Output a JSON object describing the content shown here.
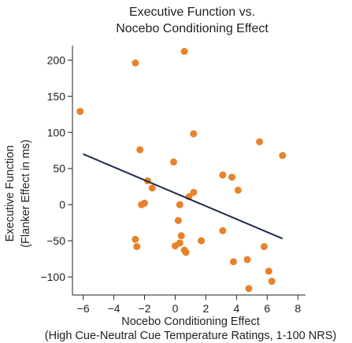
{
  "chart_data": {
    "type": "scatter",
    "title": [
      "Executive Function vs.",
      "Nocebo Conditioning Effect"
    ],
    "xlabel": [
      "Nocebo Conditioning Effect",
      "(High Cue-Neutral Cue Temperature Ratings, 1-100 NRS)"
    ],
    "ylabel": [
      "Executive Function",
      "(Flanker Effect in ms)"
    ],
    "xlim": [
      -6.7,
      8.5
    ],
    "ylim": [
      -125,
      220
    ],
    "x_ticks": [
      -6,
      -4,
      -2,
      0,
      2,
      4,
      6,
      8
    ],
    "y_ticks": [
      200,
      150,
      100,
      50,
      0,
      -50,
      -100
    ],
    "grid": false,
    "point_color": "#E8822A",
    "line_color": "#1B2A4A",
    "regression_line": {
      "x": [
        -6.0,
        7.0
      ],
      "y": [
        70,
        -47
      ]
    },
    "points": [
      {
        "x": -6.2,
        "y": 129
      },
      {
        "x": -2.6,
        "y": 196
      },
      {
        "x": 0.6,
        "y": 212
      },
      {
        "x": -2.3,
        "y": 76
      },
      {
        "x": -0.1,
        "y": 59
      },
      {
        "x": 1.2,
        "y": 98
      },
      {
        "x": 5.5,
        "y": 87
      },
      {
        "x": 7.0,
        "y": 68
      },
      {
        "x": -1.8,
        "y": 33
      },
      {
        "x": -1.5,
        "y": 23
      },
      {
        "x": -2.2,
        "y": 0
      },
      {
        "x": -2.0,
        "y": 2
      },
      {
        "x": 0.3,
        "y": 0
      },
      {
        "x": 0.9,
        "y": 11
      },
      {
        "x": 1.2,
        "y": 17
      },
      {
        "x": 3.1,
        "y": 41
      },
      {
        "x": 3.7,
        "y": 38
      },
      {
        "x": 4.1,
        "y": 20
      },
      {
        "x": 0.2,
        "y": -22
      },
      {
        "x": 3.1,
        "y": -36
      },
      {
        "x": -2.6,
        "y": -48
      },
      {
        "x": -2.5,
        "y": -58
      },
      {
        "x": 0.4,
        "y": -43
      },
      {
        "x": 0.3,
        "y": -53
      },
      {
        "x": 0.0,
        "y": -57
      },
      {
        "x": 0.6,
        "y": -63
      },
      {
        "x": 0.7,
        "y": -66
      },
      {
        "x": 1.7,
        "y": -50
      },
      {
        "x": 3.8,
        "y": -79
      },
      {
        "x": 4.7,
        "y": -76
      },
      {
        "x": 5.8,
        "y": -58
      },
      {
        "x": 6.1,
        "y": -92
      },
      {
        "x": 6.3,
        "y": -106
      },
      {
        "x": 4.8,
        "y": -116
      }
    ]
  }
}
